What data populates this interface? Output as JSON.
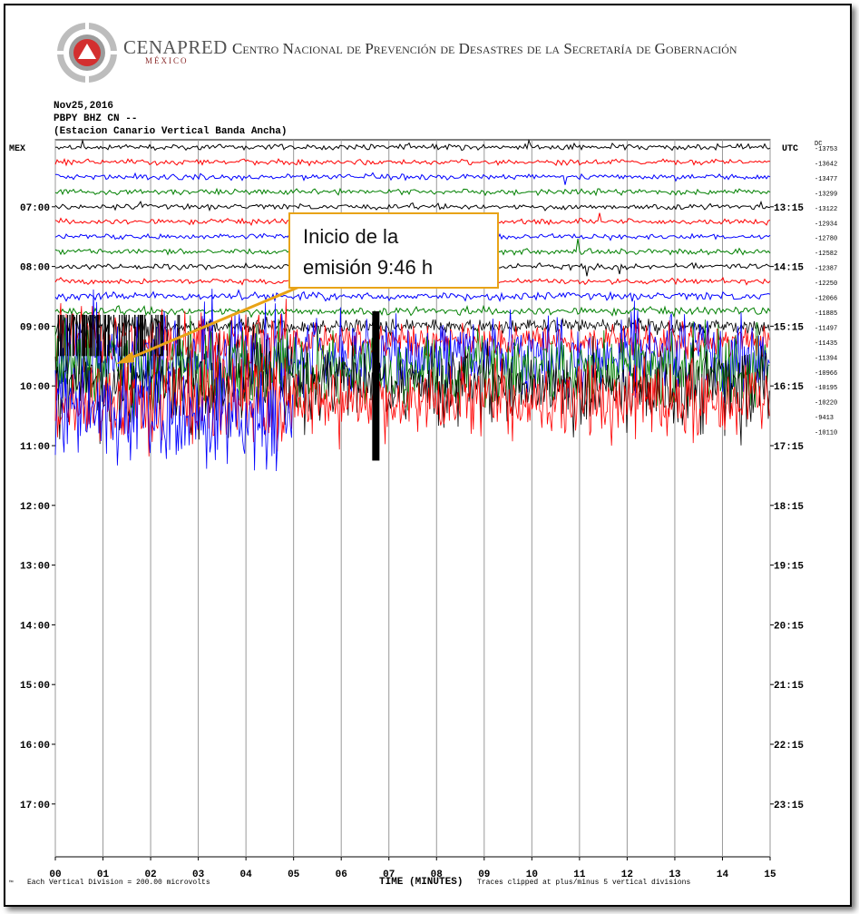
{
  "header": {
    "org": "CENAPRED",
    "country": "MÉXICO",
    "title": "Centro Nacional de Prevención de Desastres de la Secretaría de Gobernación"
  },
  "station": {
    "date": "Nov25,2016",
    "code": "PBPY BHZ CN --",
    "name": "(Estacion Canario Vertical Banda Ancha)"
  },
  "annotation": {
    "line1": "Inicio de la",
    "line2": "emisión  9:46 h"
  },
  "footer": {
    "mark": "™",
    "division": "Each Vertical Division =  200.00 microvolts",
    "xaxis_title": "TIME (MINUTES)",
    "clip_note": "Traces clipped at plus/minus 5 vertical divisions"
  },
  "chart_data": {
    "type": "line",
    "title": "",
    "xlabel": "TIME (MINUTES)",
    "xlim": [
      0,
      15
    ],
    "x_ticks": [
      "00",
      "01",
      "02",
      "03",
      "04",
      "05",
      "06",
      "07",
      "08",
      "09",
      "10",
      "11",
      "12",
      "13",
      "14",
      "15"
    ],
    "left_axis_title": "MEX",
    "right_axis_title": "UTC",
    "left_hour_labels": [
      "07:00",
      "08:00",
      "09:00",
      "10:00",
      "11:00",
      "12:00",
      "13:00",
      "14:00",
      "15:00",
      "16:00",
      "17:00"
    ],
    "right_hour_labels": [
      "13:15",
      "14:15",
      "15:15",
      "16:15",
      "17:15",
      "18:15",
      "19:15",
      "20:15",
      "21:15",
      "22:15",
      "23:15"
    ],
    "trace_colors": [
      "#000000",
      "#ff0000",
      "#0000ff",
      "#008000"
    ],
    "traces_drawn": 19,
    "offsets": [
      "DC",
      "-13753",
      "-13642",
      "-13477",
      "-13299",
      "-13122",
      "-12934",
      "-12780",
      "-12582",
      "-12387",
      "-12250",
      "-12066",
      "-11885",
      "-11497",
      "-11435",
      "-11394",
      "-10966",
      "-10195",
      "-10220",
      "-9413",
      "-10110"
    ],
    "annotation_time": "9:46 h",
    "grid": true
  }
}
